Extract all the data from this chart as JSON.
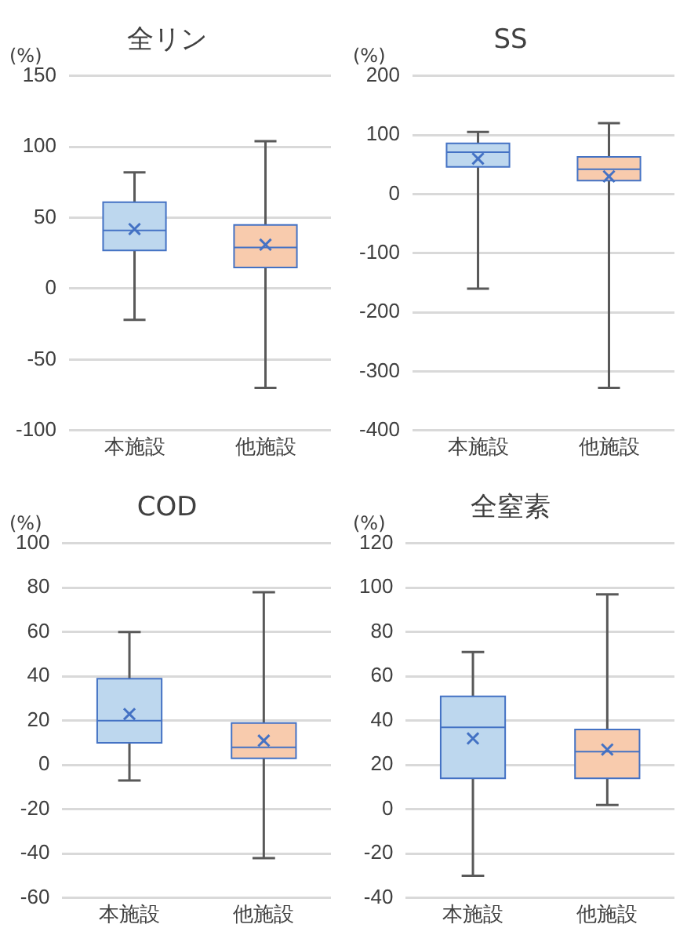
{
  "chart_data": [
    {
      "type": "box",
      "title": "全リン",
      "ylabel": "(%)",
      "categories": [
        "本施設",
        "他施設"
      ],
      "colors": [
        "#bdd7ee",
        "#f8cbad"
      ],
      "ylim": [
        -100,
        150
      ],
      "yticks": [
        -100,
        -50,
        0,
        50,
        100,
        150
      ],
      "grid": "y",
      "boxes": [
        {
          "low": -22,
          "q1": 27,
          "median": 41,
          "q3": 61,
          "high": 82,
          "mean": 42
        },
        {
          "low": -70,
          "q1": 15,
          "median": 29,
          "q3": 45,
          "high": 104,
          "mean": 31
        }
      ]
    },
    {
      "type": "box",
      "title": "SS",
      "ylabel": "(%)",
      "categories": [
        "本施設",
        "他施設"
      ],
      "colors": [
        "#bdd7ee",
        "#f8cbad"
      ],
      "ylim": [
        -400,
        200
      ],
      "yticks": [
        -400,
        -300,
        -200,
        -100,
        0,
        100,
        200
      ],
      "grid": "y",
      "boxes": [
        {
          "low": -160,
          "q1": 46,
          "median": 71,
          "q3": 86,
          "high": 105,
          "mean": 60
        },
        {
          "low": -328,
          "q1": 23,
          "median": 42,
          "q3": 63,
          "high": 120,
          "mean": 30
        }
      ]
    },
    {
      "type": "box",
      "title": "COD",
      "ylabel": "(%)",
      "categories": [
        "本施設",
        "他施設"
      ],
      "colors": [
        "#bdd7ee",
        "#f8cbad"
      ],
      "ylim": [
        -60,
        100
      ],
      "yticks": [
        -60,
        -40,
        -20,
        0,
        20,
        40,
        60,
        80,
        100
      ],
      "grid": "y",
      "boxes": [
        {
          "low": -7,
          "q1": 10,
          "median": 20,
          "q3": 39,
          "high": 60,
          "mean": 23
        },
        {
          "low": -42,
          "q1": 3,
          "median": 8,
          "q3": 19,
          "high": 78,
          "mean": 11
        }
      ]
    },
    {
      "type": "box",
      "title": "全窒素",
      "ylabel": "(%)",
      "categories": [
        "本施設",
        "他施設"
      ],
      "colors": [
        "#bdd7ee",
        "#f8cbad"
      ],
      "ylim": [
        -40,
        120
      ],
      "yticks": [
        -40,
        -20,
        0,
        20,
        40,
        60,
        80,
        100,
        120
      ],
      "grid": "y",
      "boxes": [
        {
          "low": -30,
          "q1": 14,
          "median": 37,
          "q3": 51,
          "high": 71,
          "mean": 32
        },
        {
          "low": 2,
          "q1": 14,
          "median": 26,
          "q3": 36,
          "high": 97,
          "mean": 27
        }
      ]
    }
  ]
}
